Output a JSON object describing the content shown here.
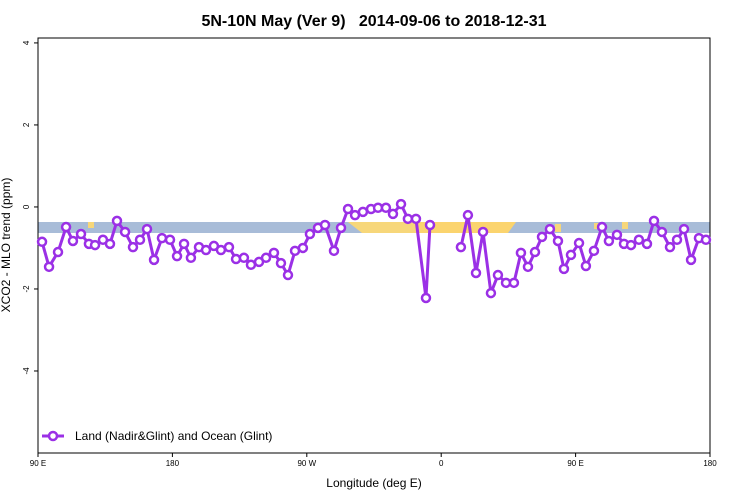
{
  "chart_data": {
    "type": "line",
    "title": "5N-10N May (Ver 9)   2014-09-06 to 2018-12-31",
    "x_label": "Longitude (deg E)",
    "y_label": "XCO2 - MLO trend (ppm)",
    "x": [
      92.7,
      97.4,
      103.4,
      108.8,
      113.4,
      118.8,
      124.1,
      128.2,
      133.5,
      138.2,
      142.9,
      148.3,
      153.6,
      158.3,
      163.0,
      167.7,
      173.0,
      178.4,
      183.1,
      187.8,
      192.4,
      197.8,
      202.5,
      207.8,
      212.5,
      217.9,
      222.6,
      227.9,
      232.6,
      238.0,
      242.7,
      248.0,
      252.7,
      257.4,
      262.1,
      267.4,
      272.1,
      277.5,
      282.2,
      288.2,
      292.9,
      297.6,
      302.3,
      307.6,
      313.0,
      317.7,
      323.0,
      327.7,
      333.1,
      337.7,
      343.1,
      349.8,
      352.5,
      362.5,
      373.2,
      377.9,
      383.3,
      388.0,
      393.3,
      398.0,
      403.4,
      408.7,
      413.4,
      418.1,
      422.8,
      427.5,
      432.8,
      438.2,
      442.2,
      446.9,
      452.3,
      456.9,
      462.3,
      467.7,
      472.3,
      477.7,
      482.4,
      487.1,
      492.4,
      497.8,
      502.5,
      507.8,
      513.2,
      517.9,
      522.6,
      527.3,
      532.6,
      537.3
    ],
    "series": [
      {
        "name": "Land (Nadir&Glint) and Ocean (Glint)",
        "color": "#9b30e6",
        "values": [
          -0.85,
          -1.46,
          -1.1,
          -0.49,
          -0.83,
          -0.66,
          -0.9,
          -0.93,
          -0.8,
          -0.9,
          -0.34,
          -0.61,
          -0.98,
          -0.8,
          -0.54,
          -1.29,
          -0.76,
          -0.8,
          -1.2,
          -0.9,
          -1.24,
          -0.98,
          -1.05,
          -0.95,
          -1.05,
          -0.98,
          -1.27,
          -1.24,
          -1.41,
          -1.34,
          -1.24,
          -1.12,
          -1.37,
          -1.66,
          -1.07,
          -1.0,
          -0.66,
          -0.51,
          -0.44,
          -1.07,
          -0.51,
          -0.05,
          -0.2,
          -0.12,
          -0.05,
          -0.02,
          -0.02,
          -0.17,
          0.07,
          -0.29,
          -0.29,
          -2.22,
          -0.44,
          null,
          -0.98,
          -0.2,
          -1.61,
          -0.61,
          -2.1,
          -1.66,
          -1.85,
          -1.85,
          -1.12,
          -1.46,
          -1.1,
          -0.73,
          -0.54,
          -0.83,
          -1.51,
          -1.17,
          -0.88,
          -1.44,
          -1.07,
          -0.49,
          -0.83,
          -0.68,
          -0.9,
          -0.93,
          -0.8,
          -0.9,
          -0.34,
          -0.61,
          -0.98,
          -0.8,
          -0.54,
          -1.29,
          -0.76,
          -0.8
        ]
      }
    ],
    "xlim": [
      90,
      540
    ],
    "xticks": [
      {
        "value": 90,
        "label": "90 E"
      },
      {
        "value": 180,
        "label": "180"
      },
      {
        "value": 270,
        "label": "90 W"
      },
      {
        "value": 360,
        "label": "0"
      },
      {
        "value": 450,
        "label": "90 E"
      },
      {
        "value": 540,
        "label": "180"
      }
    ],
    "ylim": [
      -6,
      4.12
    ],
    "yticks": [
      4,
      2,
      0,
      -2,
      -4
    ],
    "legend": "bottom-left"
  }
}
